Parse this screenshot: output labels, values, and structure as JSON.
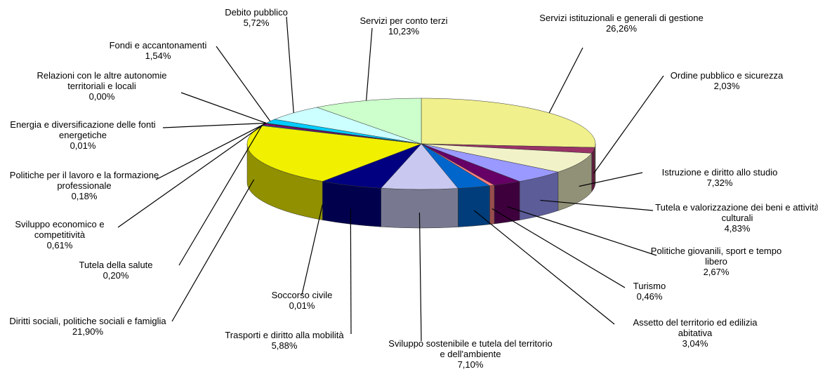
{
  "chart_data": {
    "type": "pie",
    "categories": [
      "Servizi istituzionali e generali di gestione",
      "Ordine pubblico e sicurezza",
      "Istruzione e diritto allo studio",
      "Tutela e valorizzazione dei beni e attività culturali",
      "Politiche giovanili, sport e tempo libero",
      "Turismo",
      "Assetto del territorio ed edilizia abitativa",
      "Sviluppo sostenibile e tutela del territorio e dell'ambiente",
      "Trasporti e diritto alla mobilità",
      "Soccorso civile",
      "Diritti sociali, politiche sociali e famiglia",
      "Tutela della salute",
      "Sviluppo economico e competitività",
      "Politiche per il lavoro e la formazione professionale",
      "Energia e diversificazione delle fonti energetiche",
      "Relazioni con le altre autonomie territoriali e locali",
      "Fondi e accantonamenti",
      "Debito pubblico",
      "Servizi per conto terzi"
    ],
    "values": [
      26.26,
      2.03,
      7.32,
      4.83,
      2.67,
      0.46,
      3.04,
      7.1,
      5.88,
      0.01,
      21.9,
      0.2,
      0.61,
      0.18,
      0.01,
      0.0,
      1.54,
      5.72,
      10.23
    ],
    "value_labels": [
      "26,26%",
      "2,03%",
      "7,32%",
      "4,83%",
      "2,67%",
      "0,46%",
      "3,04%",
      "7,10%",
      "5,88%",
      "0,01%",
      "21,90%",
      "0,20%",
      "0,61%",
      "0,18%",
      "0,01%",
      "0,00%",
      "1,54%",
      "5,72%",
      "10,23%"
    ],
    "colors": [
      "#f0f08c",
      "#993366",
      "#f2f2c8",
      "#9999ff",
      "#660066",
      "#ff8080",
      "#0066cc",
      "#c8c8f0",
      "#000080",
      "#ff00ff",
      "#f0f000",
      "#00ffff",
      "#800080",
      "#800000",
      "#008080",
      "#0000ff",
      "#00ccff",
      "#ccffff",
      "#ccffcc"
    ]
  }
}
